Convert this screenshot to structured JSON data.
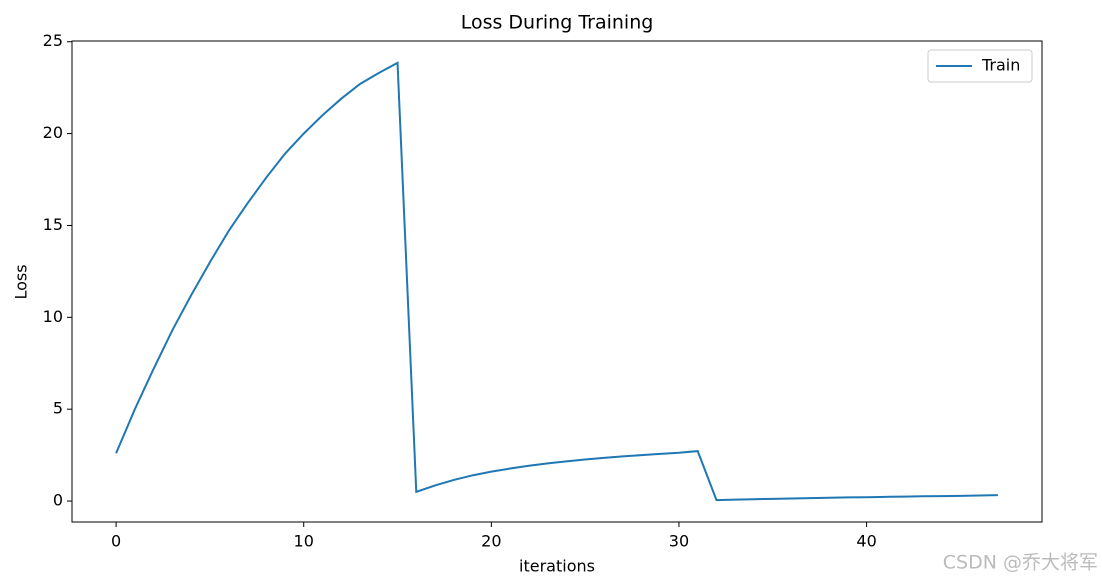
{
  "chart_data": {
    "type": "line",
    "title": "Loss During Training",
    "x_label": "iterations",
    "y_label": "Loss",
    "x": [
      0,
      1,
      2,
      3,
      4,
      5,
      6,
      7,
      8,
      9,
      10,
      11,
      12,
      13,
      14,
      15,
      16,
      17,
      18,
      19,
      20,
      21,
      22,
      23,
      24,
      25,
      26,
      27,
      28,
      29,
      30,
      31,
      32,
      33,
      34,
      35,
      36,
      37,
      38,
      39,
      40,
      41,
      42,
      43,
      44,
      45,
      46,
      47
    ],
    "series": [
      {
        "name": "Train",
        "color": "#1f77b4",
        "values": [
          2.6,
          5.0,
          7.2,
          9.3,
          11.2,
          13.0,
          14.7,
          16.2,
          17.6,
          18.9,
          20.0,
          21.0,
          21.9,
          22.7,
          23.3,
          23.85,
          0.5,
          0.85,
          1.15,
          1.4,
          1.6,
          1.77,
          1.92,
          2.05,
          2.16,
          2.26,
          2.35,
          2.43,
          2.5,
          2.57,
          2.63,
          2.72,
          0.05,
          0.08,
          0.1,
          0.12,
          0.14,
          0.16,
          0.18,
          0.2,
          0.21,
          0.23,
          0.24,
          0.26,
          0.27,
          0.28,
          0.3,
          0.32
        ]
      }
    ],
    "xlim": [
      -2.35,
      49.35
    ],
    "ylim": [
      -1.14,
      25.04
    ],
    "xticks": [
      0,
      10,
      20,
      30,
      40
    ],
    "yticks": [
      0,
      5,
      10,
      15,
      20,
      25
    ],
    "grid": false,
    "legend": "upper right",
    "watermark": "CSDN @乔大将军"
  }
}
